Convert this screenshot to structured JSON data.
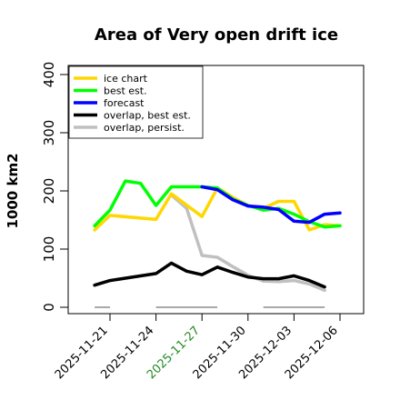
{
  "chart_data": {
    "type": "line",
    "title": "Area of Very open drift ice",
    "ylabel": "1000 km2",
    "ylim": [
      0,
      420
    ],
    "yticks": [
      0,
      100,
      200,
      300,
      400
    ],
    "xticks": [
      "2025-11-21",
      "2025-11-24",
      "2025-11-27",
      "2025-11-30",
      "2025-12-03",
      "2025-12-06"
    ],
    "xtick_values": [
      0,
      3,
      6,
      9,
      12,
      15
    ],
    "highlight_tick": "2025-11-27",
    "highlight_color": "#228b22",
    "legend_position": "top-left",
    "grid": false,
    "series": [
      {
        "name": "ice chart",
        "color": "#ffd700",
        "x": [
          -1,
          0,
          3,
          4,
          6,
          7,
          8,
          9,
          10,
          11,
          12,
          13,
          14,
          15
        ],
        "y": [
          133,
          158,
          151,
          195,
          156,
          205,
          189,
          175,
          170,
          182,
          182,
          133,
          142,
          140
        ]
      },
      {
        "name": "best est.",
        "color": "#00ff00",
        "x": [
          -1,
          0,
          1,
          2,
          3,
          4,
          5,
          6,
          7,
          8,
          9,
          10,
          11,
          12,
          13,
          14,
          15
        ],
        "y": [
          140,
          167,
          217,
          213,
          175,
          207,
          207,
          207,
          205,
          186,
          175,
          167,
          170,
          160,
          147,
          138,
          140
        ]
      },
      {
        "name": "forecast",
        "color": "#0000ff",
        "x": [
          6,
          7,
          8,
          9,
          10,
          11,
          12,
          13,
          14,
          15
        ],
        "y": [
          207,
          202,
          185,
          174,
          172,
          168,
          148,
          146,
          160,
          162
        ]
      },
      {
        "name": "overlap, best est.",
        "color": "#000000",
        "x": [
          -1,
          0,
          3,
          4,
          5,
          6,
          7,
          8,
          9,
          10,
          11,
          12,
          13,
          14
        ],
        "y": [
          38,
          46,
          58,
          76,
          62,
          56,
          69,
          60,
          52,
          49,
          49,
          54,
          46,
          35
        ]
      },
      {
        "name": "overlap, persist.",
        "color": "#c0c0c0",
        "x": [
          4,
          5,
          6,
          7,
          8,
          9,
          10,
          11,
          12,
          13,
          14
        ],
        "y": [
          193,
          170,
          89,
          86,
          70,
          55,
          45,
          44,
          46,
          40,
          29
        ]
      }
    ],
    "zero_segments": [
      [
        -1,
        0
      ],
      [
        3,
        7
      ],
      [
        10,
        14
      ]
    ]
  }
}
